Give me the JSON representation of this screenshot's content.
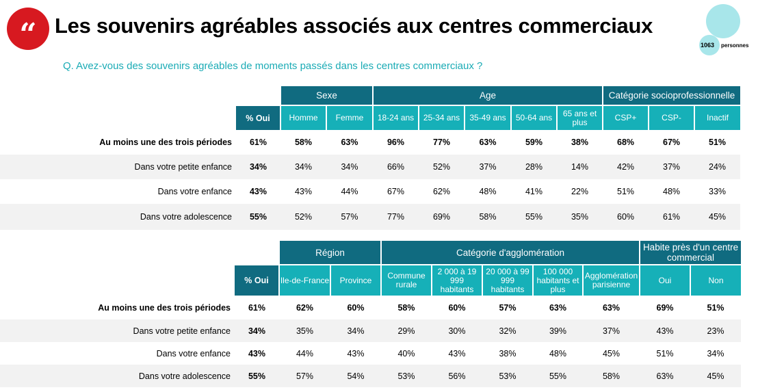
{
  "title": "Les souvenirs agréables associés aux centres commerciaux",
  "quote_mark": "“",
  "sample": {
    "count": "1063",
    "unit": "personnes"
  },
  "question": "Q. Avez-vous des souvenirs agréables de moments passés dans les centres commerciaux ?",
  "colors": {
    "header_dark": "#106b80",
    "header_light": "#16b0b8",
    "accent": "#1aabb5",
    "logo": "#d71920"
  },
  "table1": {
    "oui_label": "% Oui",
    "groups": [
      {
        "label": "Sexe",
        "span": 2
      },
      {
        "label": "Age",
        "span": 5
      },
      {
        "label": "Catégorie socioprofessionnelle",
        "span": 3
      }
    ],
    "columns": [
      "Homme",
      "Femme",
      "18-24 ans",
      "25-34 ans",
      "35-49 ans",
      "50-64 ans",
      "65 ans et plus",
      "CSP+",
      "CSP-",
      "Inactif"
    ],
    "rows": [
      {
        "label": "Au moins une des trois périodes",
        "total": "61%",
        "values": [
          "58%",
          "63%",
          "96%",
          "77%",
          "63%",
          "59%",
          "38%",
          "68%",
          "67%",
          "51%"
        ]
      },
      {
        "label": "Dans votre petite enfance",
        "total": "34%",
        "values": [
          "34%",
          "34%",
          "66%",
          "52%",
          "37%",
          "28%",
          "14%",
          "42%",
          "37%",
          "24%"
        ]
      },
      {
        "label": "Dans votre enfance",
        "total": "43%",
        "values": [
          "43%",
          "44%",
          "67%",
          "62%",
          "48%",
          "41%",
          "22%",
          "51%",
          "48%",
          "33%"
        ]
      },
      {
        "label": "Dans votre adolescence",
        "total": "55%",
        "values": [
          "52%",
          "57%",
          "77%",
          "69%",
          "58%",
          "55%",
          "35%",
          "60%",
          "61%",
          "45%"
        ]
      }
    ]
  },
  "table2": {
    "oui_label": "% Oui",
    "groups": [
      {
        "label": "Région",
        "span": 2
      },
      {
        "label": "Catégorie d'agglomération",
        "span": 5
      },
      {
        "label": "Habite près d'un centre commercial",
        "span": 2
      }
    ],
    "columns": [
      "Ile-de-France",
      "Province",
      "Commune rurale",
      "2 000 à 19 999 habitants",
      "20 000 à 99 999 habitants",
      "100 000 habitants et plus",
      "Agglomération parisienne",
      "Oui",
      "Non"
    ],
    "rows": [
      {
        "label": "Au moins une des trois périodes",
        "total": "61%",
        "values": [
          "62%",
          "60%",
          "58%",
          "60%",
          "57%",
          "63%",
          "63%",
          "69%",
          "51%"
        ]
      },
      {
        "label": "Dans votre petite enfance",
        "total": "34%",
        "values": [
          "35%",
          "34%",
          "29%",
          "30%",
          "32%",
          "39%",
          "37%",
          "43%",
          "23%"
        ]
      },
      {
        "label": "Dans votre enfance",
        "total": "43%",
        "values": [
          "44%",
          "43%",
          "40%",
          "43%",
          "38%",
          "48%",
          "45%",
          "51%",
          "34%"
        ]
      },
      {
        "label": "Dans votre adolescence",
        "total": "55%",
        "values": [
          "57%",
          "54%",
          "53%",
          "56%",
          "53%",
          "55%",
          "58%",
          "63%",
          "45%"
        ]
      }
    ]
  }
}
